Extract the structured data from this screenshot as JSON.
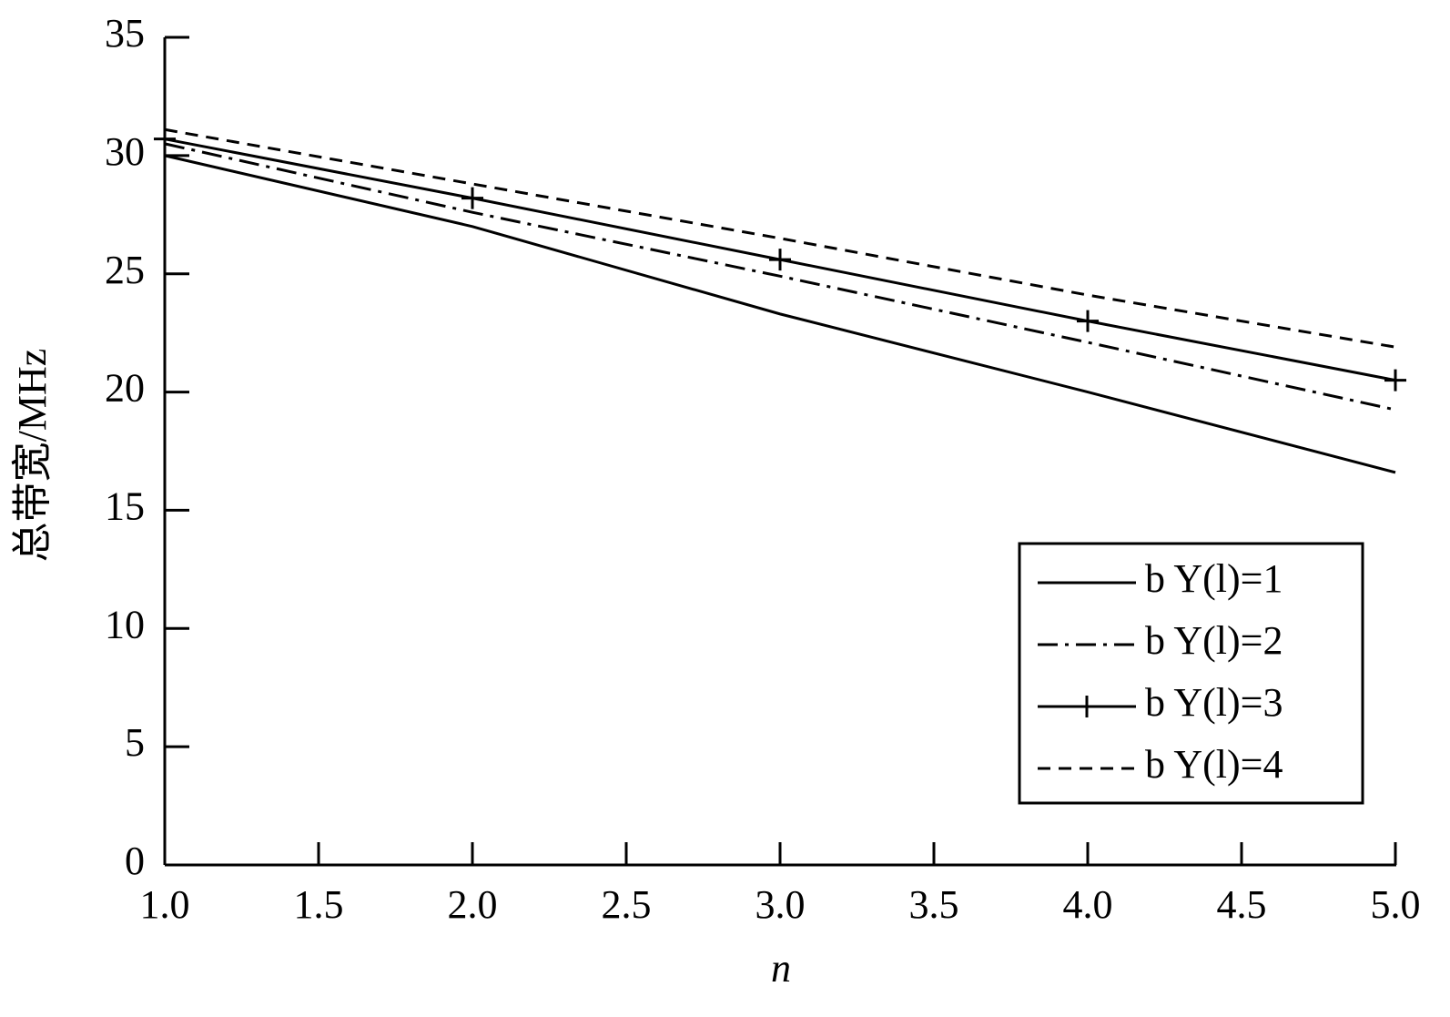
{
  "chart_data": {
    "type": "line",
    "x_label": "n",
    "y_label": "总带宽/MHz",
    "x": [
      1,
      2,
      3,
      4,
      5
    ],
    "series": [
      {
        "name": "b Y(l)=1",
        "color": "#000000",
        "dash": "solid",
        "values": [
          30.0,
          27.0,
          23.3,
          20.0,
          16.6
        ]
      },
      {
        "name": "b Y(l)=2",
        "color": "#000000",
        "dash": "dashdot",
        "values": [
          30.5,
          27.6,
          24.9,
          22.1,
          19.25
        ]
      },
      {
        "name": "b Y(l)=3",
        "color": "#000000",
        "dash": "solid",
        "marker": "plus",
        "values": [
          30.7,
          28.2,
          25.6,
          23.0,
          20.5
        ]
      },
      {
        "name": "b Y(l)=4",
        "color": "#000000",
        "dash": "dashed",
        "values": [
          31.1,
          28.8,
          26.5,
          24.1,
          21.9
        ]
      }
    ],
    "xlim": [
      1,
      5
    ],
    "xticks": [
      {
        "value": 1,
        "label": "1.0"
      },
      {
        "value": 1.5,
        "label": "1.5"
      },
      {
        "value": 2,
        "label": "2.0"
      },
      {
        "value": 2.5,
        "label": "2.5"
      },
      {
        "value": 3,
        "label": "3.0"
      },
      {
        "value": 3.5,
        "label": "3.5"
      },
      {
        "value": 4,
        "label": "4.0"
      },
      {
        "value": 4.5,
        "label": "4.5"
      },
      {
        "value": 5,
        "label": "5.0"
      }
    ],
    "ylim": [
      0,
      35
    ],
    "yticks": [
      0,
      5,
      10,
      15,
      20,
      25,
      30,
      35
    ],
    "grid": false,
    "legend": "lower right"
  }
}
